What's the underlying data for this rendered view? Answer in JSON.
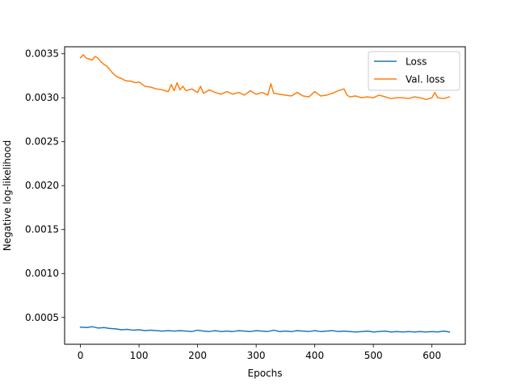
{
  "chart_data": {
    "type": "line",
    "xlabel": "Epochs",
    "ylabel": "Negative log-likelihood",
    "xlim": [
      -27,
      657
    ],
    "ylim": [
      0.000195,
      0.00358
    ],
    "xticks": [
      0,
      100,
      200,
      300,
      400,
      500,
      600
    ],
    "xtick_labels": [
      "0",
      "100",
      "200",
      "300",
      "400",
      "500",
      "600"
    ],
    "yticks": [
      0.0005,
      0.001,
      0.0015,
      0.002,
      0.0025,
      0.003,
      0.0035
    ],
    "ytick_labels": [
      "0.0005",
      "0.0010",
      "0.0015",
      "0.0020",
      "0.0025",
      "0.0030",
      "0.0035"
    ],
    "grid": false,
    "legend_position": "top-right",
    "series": [
      {
        "name": "Loss",
        "color": "#1f77b4",
        "x": [
          0,
          10,
          20,
          30,
          40,
          50,
          60,
          70,
          80,
          90,
          100,
          110,
          120,
          130,
          140,
          150,
          160,
          170,
          180,
          190,
          200,
          210,
          220,
          230,
          240,
          250,
          260,
          270,
          280,
          290,
          300,
          310,
          320,
          330,
          340,
          350,
          360,
          370,
          380,
          390,
          400,
          410,
          420,
          430,
          440,
          450,
          460,
          470,
          480,
          490,
          500,
          510,
          520,
          530,
          540,
          550,
          560,
          570,
          580,
          590,
          600,
          610,
          620,
          630
        ],
        "y": [
          0.00039,
          0.000385,
          0.000395,
          0.00038,
          0.000385,
          0.000375,
          0.00037,
          0.00036,
          0.000365,
          0.000355,
          0.00036,
          0.00035,
          0.000355,
          0.00035,
          0.000345,
          0.00035,
          0.000345,
          0.00035,
          0.000345,
          0.00034,
          0.000355,
          0.000345,
          0.00034,
          0.00035,
          0.00034,
          0.000345,
          0.00034,
          0.00035,
          0.000345,
          0.00034,
          0.00035,
          0.000345,
          0.00034,
          0.000355,
          0.00034,
          0.000345,
          0.00034,
          0.00035,
          0.000345,
          0.00034,
          0.00035,
          0.00034,
          0.000345,
          0.00035,
          0.00034,
          0.000345,
          0.00034,
          0.000335,
          0.00034,
          0.000345,
          0.000335,
          0.00034,
          0.000345,
          0.000335,
          0.00034,
          0.000335,
          0.00034,
          0.000335,
          0.00034,
          0.000335,
          0.00034,
          0.000335,
          0.000345,
          0.000335
        ]
      },
      {
        "name": "Val. loss",
        "color": "#ff7f0e",
        "x": [
          0,
          5,
          10,
          15,
          20,
          25,
          30,
          35,
          40,
          45,
          50,
          55,
          60,
          65,
          70,
          75,
          80,
          85,
          90,
          95,
          100,
          110,
          120,
          130,
          140,
          150,
          155,
          160,
          165,
          170,
          175,
          180,
          190,
          200,
          205,
          210,
          220,
          230,
          240,
          250,
          260,
          270,
          280,
          290,
          300,
          310,
          320,
          325,
          330,
          340,
          350,
          360,
          370,
          380,
          390,
          400,
          410,
          420,
          430,
          440,
          450,
          455,
          460,
          470,
          480,
          490,
          500,
          510,
          520,
          530,
          540,
          550,
          560,
          570,
          580,
          590,
          600,
          605,
          610,
          620,
          630
        ],
        "y": [
          0.003455,
          0.00349,
          0.00345,
          0.00344,
          0.00343,
          0.00347,
          0.00345,
          0.00341,
          0.00338,
          0.00336,
          0.00332,
          0.00328,
          0.00325,
          0.00323,
          0.00322,
          0.0032,
          0.00319,
          0.00319,
          0.00318,
          0.00317,
          0.00318,
          0.00313,
          0.00312,
          0.0031,
          0.00309,
          0.00307,
          0.00315,
          0.00308,
          0.00317,
          0.00309,
          0.00313,
          0.00308,
          0.0031,
          0.00306,
          0.00313,
          0.00305,
          0.00309,
          0.00306,
          0.00304,
          0.00307,
          0.00304,
          0.00306,
          0.00303,
          0.00308,
          0.00304,
          0.00306,
          0.00303,
          0.00316,
          0.00305,
          0.00304,
          0.00303,
          0.00302,
          0.00306,
          0.00302,
          0.00301,
          0.00307,
          0.00302,
          0.00303,
          0.00305,
          0.00308,
          0.0031,
          0.00303,
          0.00301,
          0.00302,
          0.003,
          0.00301,
          0.003,
          0.00303,
          0.00301,
          0.00299,
          0.003,
          0.003,
          0.00299,
          0.00301,
          0.003,
          0.00298,
          0.003,
          0.00306,
          0.003,
          0.00299,
          0.00301
        ]
      }
    ]
  }
}
